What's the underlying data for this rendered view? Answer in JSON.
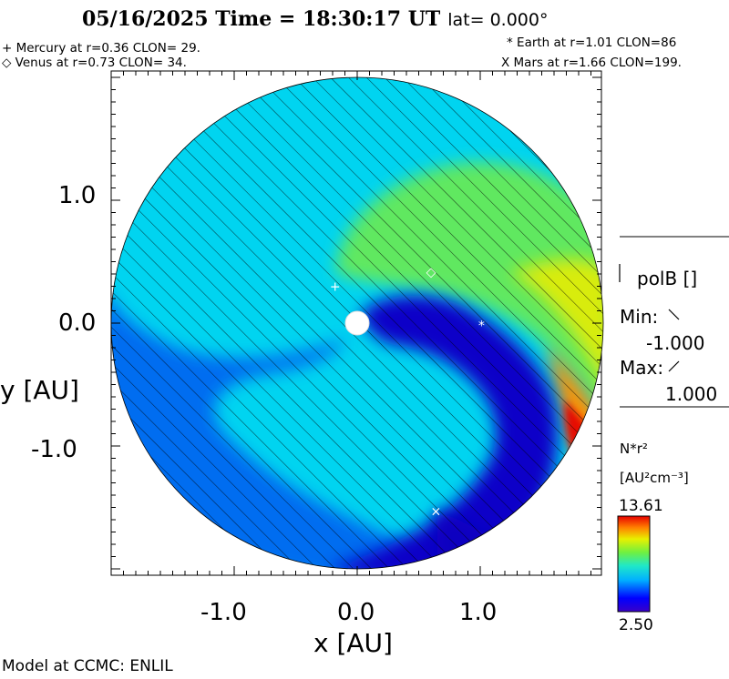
{
  "header": {
    "title_date_time": "05/16/2025 Time = 18:30:17 UT",
    "title_lat": "lat= 0.000°"
  },
  "planets": {
    "mercury": "+ Mercury at r=0.36 CLON= 29.",
    "venus": "◇ Venus at r=0.73 CLON= 34.",
    "earth": "* Earth at  r=1.01 CLON=86",
    "mars": "X Mars at r=1.66 CLON=199."
  },
  "polarity": {
    "label": "polB []",
    "min_label": "Min:",
    "min_value": "-1.000",
    "max_label": "Max:",
    "max_value": "1.000"
  },
  "colorbar": {
    "quantity": "N*r²",
    "units": "[AU²cm⁻³]",
    "max": "13.61",
    "min": "2.50",
    "colors": [
      "#2a00b5",
      "#0034ff",
      "#00b4ff",
      "#20e0c0",
      "#80f040",
      "#e8f000",
      "#ff8000",
      "#e00000"
    ]
  },
  "footer": {
    "credit": "Model at CCMC: ENLIL"
  },
  "chart_data": {
    "type": "heatmap",
    "title": "05/16/2025 Time = 18:30:17 UT lat= 0.000°",
    "xlabel": "x [AU]",
    "ylabel": "y [AU]",
    "xlim": [
      -2.0,
      2.0
    ],
    "ylim": [
      -2.0,
      2.0
    ],
    "x_ticks": [
      "-1.0",
      "0.0",
      "1.0"
    ],
    "y_ticks": [
      "1.0",
      "0.0",
      "-1.0"
    ],
    "domain_radius_au": 2.0,
    "colorbar_range": [
      2.5,
      13.61
    ],
    "colors": {
      "background": "#00d2f0",
      "low_density": "#1000d0",
      "mid_density": "#0080ff",
      "arm": "#90f040",
      "high_density": "#e00000"
    },
    "planets": [
      {
        "name": "Mercury",
        "x": -0.18,
        "y": 0.3,
        "marker": "+"
      },
      {
        "name": "Venus",
        "x": 0.6,
        "y": 0.42,
        "marker": "◇"
      },
      {
        "name": "Earth",
        "x": 1.01,
        "y": -0.02,
        "marker": "*"
      },
      {
        "name": "Mars",
        "x": 0.64,
        "y": -1.53,
        "marker": "X"
      }
    ]
  }
}
